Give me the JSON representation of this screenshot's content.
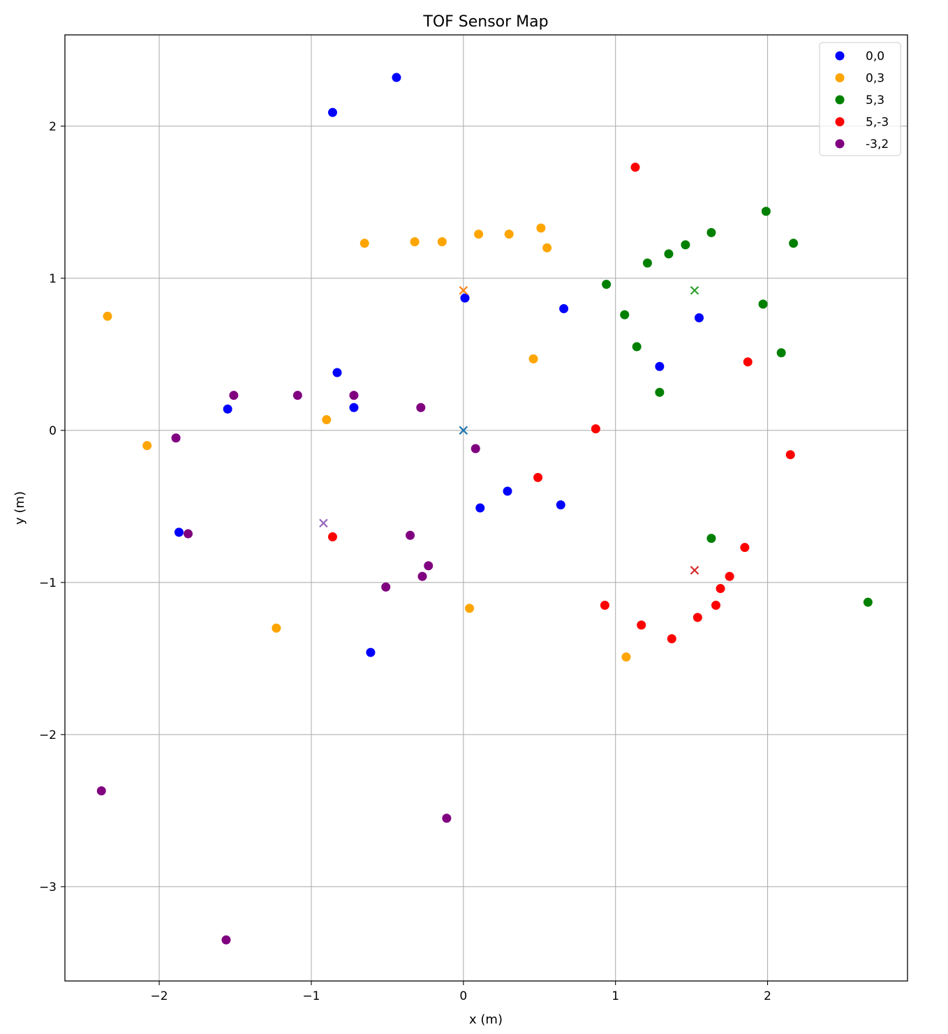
{
  "chart_data": {
    "type": "scatter",
    "title": "TOF Sensor Map",
    "xlabel": "x (m)",
    "ylabel": "y (m)",
    "xlim": [
      -2.62,
      2.92
    ],
    "ylim": [
      -3.62,
      2.6
    ],
    "xticks": [
      -2,
      -1,
      0,
      1,
      2
    ],
    "yticks": [
      -3,
      -2,
      -1,
      0,
      1,
      2
    ],
    "xtick_labels": [
      "−2",
      "−1",
      "0",
      "1",
      "2"
    ],
    "ytick_labels": [
      "−3",
      "−2",
      "−1",
      "0",
      "1",
      "2"
    ],
    "grid": true,
    "legend_position": "top-right",
    "series": [
      {
        "name": "0,0",
        "color": "#0000ff",
        "points": [
          [
            -0.44,
            2.32
          ],
          [
            -0.86,
            2.09
          ],
          [
            0.01,
            0.87
          ],
          [
            0.66,
            0.8
          ],
          [
            1.55,
            0.74
          ],
          [
            1.29,
            0.42
          ],
          [
            -0.83,
            0.38
          ],
          [
            -0.72,
            0.15
          ],
          [
            -1.55,
            0.14
          ],
          [
            0.29,
            -0.4
          ],
          [
            0.64,
            -0.49
          ],
          [
            0.11,
            -0.51
          ],
          [
            -1.87,
            -0.67
          ],
          [
            -0.61,
            -1.46
          ]
        ]
      },
      {
        "name": "0,3",
        "color": "#ffa500",
        "points": [
          [
            0.51,
            1.33
          ],
          [
            0.1,
            1.29
          ],
          [
            0.3,
            1.29
          ],
          [
            -0.65,
            1.23
          ],
          [
            -0.32,
            1.24
          ],
          [
            -0.14,
            1.24
          ],
          [
            0.55,
            1.2
          ],
          [
            -2.34,
            0.75
          ],
          [
            0.46,
            0.47
          ],
          [
            -0.9,
            0.07
          ],
          [
            -2.08,
            -0.1
          ],
          [
            0.04,
            -1.17
          ],
          [
            -1.23,
            -1.3
          ],
          [
            1.07,
            -1.49
          ]
        ]
      },
      {
        "name": "5,3",
        "color": "#008000",
        "points": [
          [
            1.99,
            1.44
          ],
          [
            1.63,
            1.3
          ],
          [
            2.17,
            1.23
          ],
          [
            1.46,
            1.22
          ],
          [
            1.35,
            1.16
          ],
          [
            1.21,
            1.1
          ],
          [
            0.94,
            0.96
          ],
          [
            1.97,
            0.83
          ],
          [
            1.06,
            0.76
          ],
          [
            1.14,
            0.55
          ],
          [
            2.09,
            0.51
          ],
          [
            1.29,
            0.25
          ],
          [
            1.63,
            -0.71
          ],
          [
            2.66,
            -1.13
          ]
        ]
      },
      {
        "name": "5,-3",
        "color": "#ff0000",
        "points": [
          [
            1.13,
            1.73
          ],
          [
            1.87,
            0.45
          ],
          [
            0.87,
            0.01
          ],
          [
            2.15,
            -0.16
          ],
          [
            0.49,
            -0.31
          ],
          [
            -0.86,
            -0.7
          ],
          [
            1.85,
            -0.77
          ],
          [
            1.75,
            -0.96
          ],
          [
            1.69,
            -1.04
          ],
          [
            0.93,
            -1.15
          ],
          [
            1.66,
            -1.15
          ],
          [
            1.54,
            -1.23
          ],
          [
            1.17,
            -1.28
          ],
          [
            1.37,
            -1.37
          ]
        ]
      },
      {
        "name": "-3,2",
        "color": "#800080",
        "points": [
          [
            -1.51,
            0.23
          ],
          [
            -1.09,
            0.23
          ],
          [
            -0.72,
            0.23
          ],
          [
            -0.28,
            0.15
          ],
          [
            -1.89,
            -0.05
          ],
          [
            0.08,
            -0.12
          ],
          [
            -1.81,
            -0.68
          ],
          [
            -0.35,
            -0.69
          ],
          [
            -0.23,
            -0.89
          ],
          [
            -0.27,
            -0.96
          ],
          [
            -0.51,
            -1.03
          ],
          [
            -2.38,
            -2.37
          ],
          [
            -0.11,
            -2.55
          ],
          [
            -1.56,
            -3.35
          ]
        ]
      }
    ],
    "sensor_markers": [
      {
        "color": "#1f77b4",
        "point": [
          0.0,
          0.0
        ]
      },
      {
        "color": "#ff7f0e",
        "point": [
          0.0,
          0.92
        ]
      },
      {
        "color": "#2ca02c",
        "point": [
          1.52,
          0.92
        ]
      },
      {
        "color": "#d62728",
        "point": [
          1.52,
          -0.92
        ]
      },
      {
        "color": "#9467bd",
        "point": [
          -0.92,
          -0.61
        ]
      }
    ]
  }
}
